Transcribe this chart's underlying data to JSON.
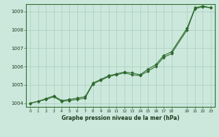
{
  "title": "Graphe pression niveau de la mer (hPa)",
  "bg_color": "#cce8dd",
  "grid_color": "#a8ccbb",
  "line_color": "#2d6a2d",
  "marker_color": "#2d6a2d",
  "xlim": [
    -0.5,
    23.5
  ],
  "ylim": [
    1003.8,
    1009.4
  ],
  "yticks": [
    1004,
    1005,
    1006,
    1007,
    1008,
    1009
  ],
  "xticks": [
    0,
    1,
    2,
    3,
    4,
    5,
    6,
    7,
    8,
    9,
    10,
    11,
    12,
    13,
    14,
    15,
    16,
    17,
    18,
    20,
    21,
    22,
    23
  ],
  "series1_x": [
    0,
    1,
    2,
    3,
    4,
    5,
    6,
    7,
    8,
    9,
    10,
    11,
    12,
    13,
    14,
    15,
    16,
    17,
    18,
    20,
    21,
    22,
    23
  ],
  "series1_y": [
    1004.0,
    1004.1,
    1004.2,
    1004.35,
    1004.1,
    1004.15,
    1004.2,
    1004.28,
    1005.05,
    1005.25,
    1005.45,
    1005.55,
    1005.65,
    1005.55,
    1005.5,
    1005.75,
    1006.0,
    1006.5,
    1006.7,
    1008.0,
    1009.15,
    1009.25,
    1009.2
  ],
  "series2_x": [
    0,
    1,
    2,
    3,
    4,
    5,
    6,
    7,
    8,
    9,
    10,
    11,
    12,
    13,
    14,
    15,
    16,
    17,
    18,
    20,
    21,
    22,
    23
  ],
  "series2_y": [
    1004.0,
    1004.1,
    1004.25,
    1004.4,
    1004.15,
    1004.2,
    1004.28,
    1004.35,
    1005.1,
    1005.3,
    1005.5,
    1005.6,
    1005.7,
    1005.65,
    1005.55,
    1005.85,
    1006.1,
    1006.6,
    1006.8,
    1008.1,
    1009.2,
    1009.3,
    1009.2
  ]
}
